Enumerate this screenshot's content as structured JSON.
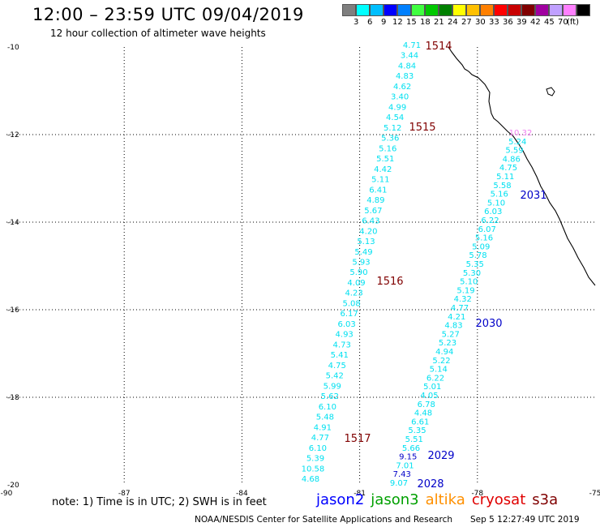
{
  "header": {
    "title": "12:00 – 23:59 UTC 09/04/2019",
    "subtitle": "12 hour collection of altimeter wave heights"
  },
  "colorbar": {
    "colors": [
      "#7f7f7f",
      "#00ffff",
      "#00bfff",
      "#0000ff",
      "#0080ff",
      "#40ff40",
      "#00c800",
      "#008000",
      "#ffff00",
      "#ffc000",
      "#ff8000",
      "#ff0000",
      "#c80000",
      "#800000",
      "#a000a0",
      "#c0a0ff",
      "#ff80ff",
      "#000000"
    ],
    "tick_labels": [
      "3",
      "6",
      "9",
      "12",
      "15",
      "18",
      "21",
      "24",
      "27",
      "30",
      "33",
      "36",
      "39",
      "42",
      "45",
      "70",
      "(ft)"
    ]
  },
  "map": {
    "lon_labels": [
      "-90",
      "-87",
      "-84",
      "-81",
      "-78",
      "-75"
    ],
    "lat_labels": [
      "-10",
      "-12",
      "-14",
      "-16",
      "-18",
      "-20"
    ],
    "colors": {
      "cyan": "#00e0f0",
      "blue": "#0000c8",
      "pass_time": "#800000",
      "pink": "#f080f0",
      "coast": "#000000"
    },
    "tracks": [
      {
        "pass_time": "1514",
        "values": [
          "4.71",
          "3.44",
          "4.84",
          "4.83",
          "4.62",
          "3.40",
          "4.99",
          "4.54",
          "5.12",
          "5.36",
          "5.16",
          "5.51",
          "4.42",
          "5.11",
          "6.41",
          "4.89",
          "5.67",
          "6.43",
          "4.20",
          "5.13",
          "5.49",
          "5.93",
          "5.90",
          "4.09",
          "4.23",
          "5.08",
          "6.17",
          "6.03",
          "4.93",
          "4.73",
          "5.41",
          "4.75",
          "5.42",
          "5.99",
          "5.62",
          "6.10",
          "5.48",
          "4.91",
          "4.77",
          "6.10",
          "5.39",
          "10.58",
          "4.68"
        ]
      },
      {
        "pass_times": [
          "1515",
          "1516",
          "1517"
        ]
      },
      {
        "values": [
          "10.32",
          "5.24",
          "5.59",
          "4.86",
          "4.75",
          "5.11",
          "5.58",
          "5.16",
          "5.10",
          "6.03",
          "6.22",
          "6.07",
          "5.16",
          "5.09",
          "5.78",
          "5.35",
          "5.30",
          "5.10",
          "5.19",
          "4.32",
          "4.77",
          "4.21",
          "4.83",
          "5.27",
          "5.23",
          "4.94",
          "5.22",
          "5.14",
          "6.22",
          "5.01",
          "4.05",
          "6.78",
          "4.48",
          "6.61",
          "5.35",
          "5.51",
          "5.66",
          "9.15",
          "7.01",
          "7.43",
          "9.07"
        ],
        "pass_times": [
          "2031",
          "2030",
          "2029",
          "2028"
        ]
      }
    ]
  },
  "footer": {
    "note": "note: 1) Time is in UTC; 2) SWH is in feet",
    "satellites": [
      {
        "name": "jason2",
        "color": "#0000ff"
      },
      {
        "name": "jason3",
        "color": "#00a000"
      },
      {
        "name": "altika",
        "color": "#ff9000"
      },
      {
        "name": "cryosat",
        "color": "#e00000"
      },
      {
        "name": "s3a",
        "color": "#800000"
      }
    ],
    "credit": "NOAA/NESDIS Center for Satellite Applications and Research",
    "timestamp": "Sep  5 12:27:49 UTC 2019"
  }
}
